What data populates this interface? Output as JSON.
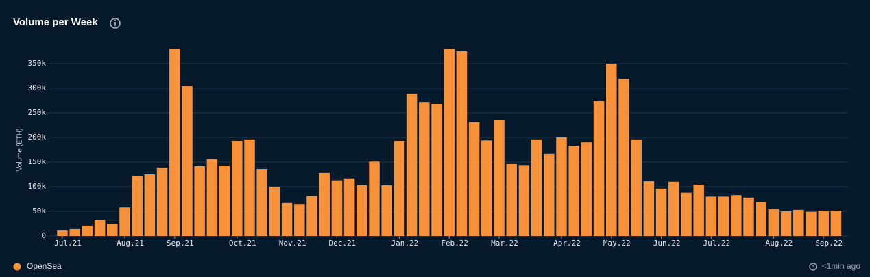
{
  "chart_data": {
    "type": "bar",
    "title": "Volume per Week",
    "ylabel": "Volume (ETH)",
    "categories": [
      "Jul.21",
      null,
      null,
      null,
      null,
      "Aug.21",
      null,
      null,
      null,
      "Sep.21",
      null,
      null,
      null,
      null,
      "Oct.21",
      null,
      null,
      null,
      "Nov.21",
      null,
      null,
      null,
      "Dec.21",
      null,
      null,
      null,
      null,
      "Jan.22",
      null,
      null,
      null,
      "Feb.22",
      null,
      null,
      null,
      "Mar.22",
      null,
      null,
      null,
      null,
      "Apr.22",
      null,
      null,
      null,
      "May.22",
      null,
      null,
      null,
      "Jun.22",
      null,
      null,
      null,
      "Jul.22",
      null,
      null,
      null,
      null,
      "Aug.22",
      null,
      null,
      null,
      "Sep.22",
      null
    ],
    "series": [
      {
        "name": "OpenSea",
        "color": "#f7923a",
        "values": [
          11000,
          14000,
          21000,
          33000,
          25000,
          58000,
          122000,
          125000,
          139000,
          380000,
          304000,
          142000,
          156000,
          143000,
          193000,
          196000,
          136000,
          100000,
          67000,
          65000,
          81000,
          128000,
          113000,
          117000,
          103000,
          151000,
          103000,
          193000,
          289000,
          272000,
          268000,
          380000,
          375000,
          231000,
          194000,
          235000,
          146000,
          144000,
          196000,
          167000,
          200000,
          183000,
          190000,
          274000,
          350000,
          319000,
          196000,
          111000,
          96000,
          110000,
          88000,
          104000,
          80000,
          80000,
          83000,
          78000,
          68000,
          54000,
          50000,
          53000,
          49000,
          51000,
          51000
        ]
      }
    ],
    "ylim": [
      0,
      380000
    ],
    "yticks": [
      0,
      {
        "value": 50000,
        "label": "50k"
      },
      {
        "value": 100000,
        "label": "100k"
      },
      {
        "value": 150000,
        "label": "150k"
      },
      {
        "value": 200000,
        "label": "200k"
      },
      {
        "value": 250000,
        "label": "250k"
      },
      {
        "value": 300000,
        "label": "300k"
      },
      {
        "value": 350000,
        "label": "350k"
      }
    ],
    "grid": true,
    "legend": "bottom-left",
    "updated": "<1min ago"
  }
}
